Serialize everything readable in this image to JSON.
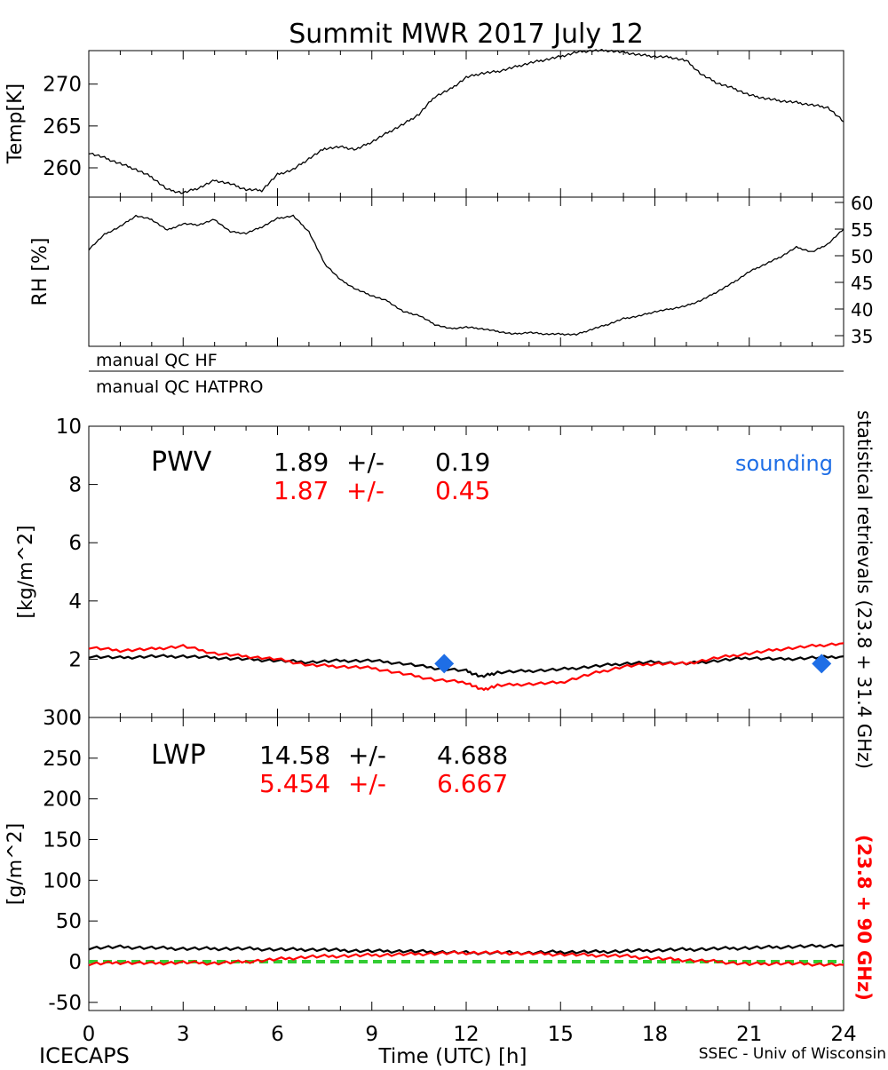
{
  "title": "Summit MWR 2017 July 12",
  "footer": {
    "left": "ICECAPS",
    "center": "Time (UTC) [h]",
    "right": "SSEC - Univ of Wisconsin"
  },
  "colors": {
    "primary": "#000000",
    "secondary": "#ff0000",
    "sounding": "#1e6ee6",
    "zero_line": "#33cc33"
  },
  "chart_data": [
    {
      "type": "line",
      "panel": "temperature",
      "ylabel": "Temp[K]",
      "ylim": [
        256.5,
        274
      ],
      "yticks": [
        260,
        265,
        270
      ],
      "xlim": [
        0,
        24
      ],
      "series": [
        {
          "color": "#000000",
          "x": [
            0,
            0.5,
            1,
            1.5,
            2,
            2.5,
            3,
            3.5,
            4,
            4.5,
            5,
            5.5,
            6,
            6.5,
            7,
            7.5,
            8,
            8.5,
            9,
            9.5,
            10,
            10.5,
            11,
            11.5,
            12,
            12.5,
            13,
            13.5,
            14,
            14.5,
            15,
            15.5,
            16,
            16.5,
            17,
            17.5,
            18,
            18.5,
            19,
            19.5,
            20,
            20.5,
            21,
            21.5,
            22,
            22.5,
            23,
            23.5,
            24
          ],
          "values": [
            261.8,
            261.2,
            260.5,
            259.8,
            258.9,
            257.4,
            257,
            257.6,
            258.5,
            258.1,
            257.4,
            257.3,
            259.2,
            259.8,
            261.1,
            262.3,
            262.5,
            262.2,
            263.1,
            264.2,
            265.2,
            266.4,
            268.5,
            269.4,
            270.8,
            271.3,
            271.5,
            272,
            272.5,
            272.9,
            273.3,
            273.8,
            274,
            274,
            273.8,
            273.5,
            273.3,
            273.2,
            272.8,
            271.1,
            270.1,
            269.5,
            268.7,
            268.3,
            268,
            267.8,
            267.5,
            267.2,
            265.5
          ]
        }
      ]
    },
    {
      "type": "line",
      "panel": "relative-humidity",
      "ylabel": "RH [%]",
      "ylim": [
        33,
        61
      ],
      "yticks": [
        35,
        40,
        45,
        50,
        55,
        60
      ],
      "xlim": [
        0,
        24
      ],
      "series": [
        {
          "color": "#000000",
          "x": [
            0,
            0.5,
            1,
            1.5,
            2,
            2.5,
            3,
            3.5,
            4,
            4.5,
            5,
            5.5,
            6,
            6.5,
            7,
            7.5,
            8,
            8.5,
            9,
            9.5,
            10,
            10.5,
            11,
            11.5,
            12,
            12.5,
            13,
            13.5,
            14,
            14.5,
            15,
            15.5,
            16,
            16.5,
            17,
            17.5,
            18,
            18.5,
            19,
            19.5,
            20,
            20.5,
            21,
            21.5,
            22,
            22.5,
            23,
            23.5,
            24
          ],
          "values": [
            51.2,
            54,
            55.5,
            57.5,
            56.8,
            54.8,
            56,
            55.8,
            56.8,
            54.5,
            54.2,
            55.4,
            57,
            57.5,
            54.5,
            48.5,
            45.5,
            43.7,
            42.5,
            41.5,
            39.5,
            38.8,
            37.1,
            36.3,
            36.6,
            36.3,
            35.8,
            35.3,
            35.6,
            35.3,
            35.3,
            35.2,
            36.2,
            37.1,
            38.2,
            38.7,
            39.5,
            40,
            40.6,
            41.7,
            43.3,
            45,
            47,
            48.4,
            49.8,
            51.6,
            50.7,
            52.2,
            55
          ]
        }
      ]
    },
    {
      "type": "table",
      "panel": "quality-control",
      "rows": [
        "manual QC HF",
        "manual QC HATPRO"
      ]
    },
    {
      "type": "line",
      "panel": "pwv",
      "label": "PWV",
      "ylabel": "[kg/m^2]",
      "ylim": [
        0,
        10
      ],
      "yticks": [
        0,
        2,
        4,
        6,
        8,
        10
      ],
      "xlim": [
        0,
        24
      ],
      "xticks": [
        0,
        3,
        6,
        9,
        12,
        15,
        18,
        21,
        24
      ],
      "stats": [
        {
          "mean": "1.89",
          "pm": "+/-",
          "std": "0.19",
          "color": "#000000"
        },
        {
          "mean": "1.87",
          "pm": "+/-",
          "std": "0.45",
          "color": "#ff0000"
        }
      ],
      "legend": "sounding",
      "series": [
        {
          "color": "#000000",
          "x": [
            0,
            1,
            2,
            3,
            4,
            5,
            6,
            7,
            8,
            9,
            10,
            11,
            12,
            12.5,
            13,
            14,
            15,
            16,
            17,
            18,
            19,
            20,
            21,
            22,
            23,
            24
          ],
          "values": [
            2.1,
            2.05,
            2.1,
            2.1,
            2.05,
            2.0,
            1.95,
            1.9,
            1.95,
            1.95,
            1.85,
            1.7,
            1.6,
            1.4,
            1.55,
            1.6,
            1.65,
            1.75,
            1.85,
            1.9,
            1.85,
            1.95,
            2.05,
            2.0,
            2.05,
            2.1
          ]
        },
        {
          "color": "#ff0000",
          "x": [
            0,
            1,
            2,
            3,
            4,
            5,
            6,
            7,
            8,
            9,
            10,
            11,
            12,
            12.5,
            13,
            14,
            15,
            16,
            17,
            18,
            19,
            20,
            21,
            22,
            23,
            24
          ],
          "values": [
            2.4,
            2.3,
            2.35,
            2.45,
            2.2,
            2.1,
            2.0,
            1.8,
            1.75,
            1.7,
            1.5,
            1.3,
            1.2,
            0.95,
            1.1,
            1.15,
            1.2,
            1.5,
            1.75,
            1.85,
            1.85,
            2.05,
            2.2,
            2.35,
            2.45,
            2.55
          ]
        }
      ],
      "sounding_points": {
        "x": [
          11.3,
          23.3
        ],
        "values": [
          1.85,
          1.85
        ],
        "color": "#1e6ee6"
      }
    },
    {
      "type": "line",
      "panel": "lwp",
      "label": "LWP",
      "ylabel": "[g/m^2]",
      "ylim": [
        -60,
        300
      ],
      "yticks": [
        -50,
        0,
        50,
        100,
        150,
        200,
        250,
        300
      ],
      "xlim": [
        0,
        24
      ],
      "xticks": [
        0,
        3,
        6,
        9,
        12,
        15,
        18,
        21,
        24
      ],
      "stats": [
        {
          "mean": "14.58",
          "pm": "+/-",
          "std": "4.688",
          "color": "#000000"
        },
        {
          "mean": "5.454",
          "pm": "+/-",
          "std": "6.667",
          "color": "#ff0000"
        }
      ],
      "series": [
        {
          "color": "#000000",
          "x": [
            0,
            1,
            2,
            3,
            4,
            5,
            6,
            7,
            8,
            9,
            10,
            11,
            12,
            13,
            14,
            15,
            16,
            17,
            18,
            19,
            20,
            21,
            22,
            23,
            24
          ],
          "values": [
            17,
            18,
            17,
            16,
            16,
            16,
            15,
            15,
            14,
            13,
            13,
            12,
            11,
            11,
            11,
            12,
            12,
            13,
            14,
            15,
            16,
            17,
            18,
            19,
            20
          ]
        },
        {
          "color": "#ff0000",
          "x": [
            0,
            1,
            2,
            3,
            4,
            5,
            6,
            7,
            8,
            9,
            10,
            11,
            12,
            13,
            14,
            15,
            16,
            17,
            18,
            19,
            20,
            21,
            22,
            23,
            24
          ],
          "values": [
            -3,
            -1,
            -2,
            -1,
            -2,
            0,
            3,
            6,
            7,
            8,
            9,
            10,
            11,
            11,
            10,
            9,
            8,
            7,
            4,
            2,
            0,
            -3,
            -2,
            -3,
            -4
          ]
        }
      ],
      "reference_line": {
        "value": 0,
        "color": "#33cc33"
      }
    }
  ],
  "side_labels": {
    "black": "statistical retrievals (23.8 + 31.4 GHz)",
    "red": "(23.8 + 90 GHz)"
  }
}
